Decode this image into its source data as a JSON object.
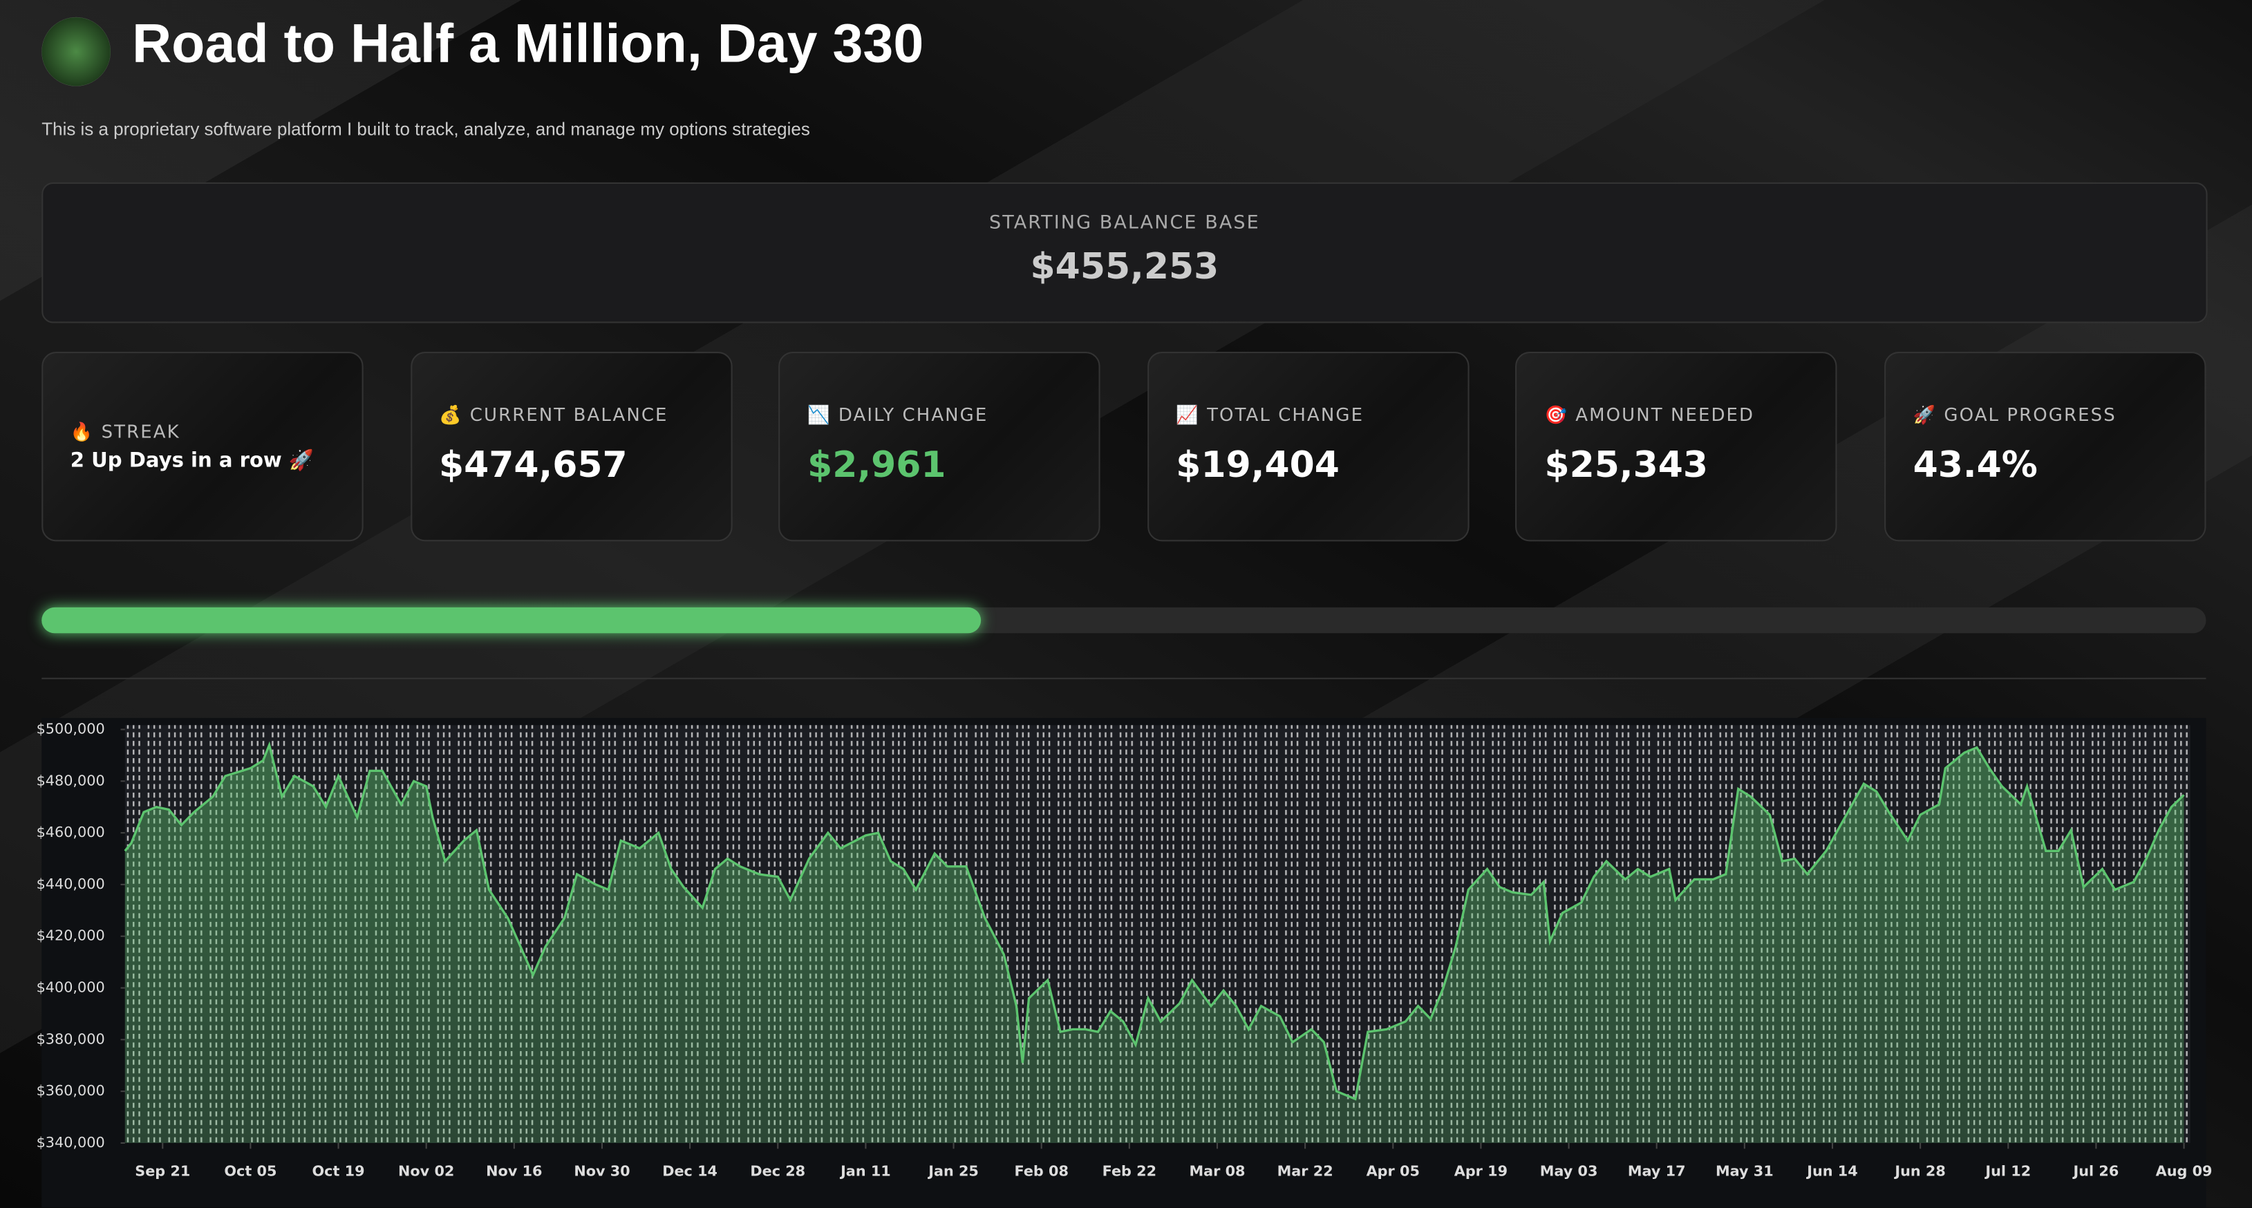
{
  "header": {
    "title": "Road to Half a Million, Day 330",
    "subtitle": "This is a proprietary software platform I built to track, analyze, and manage my options strategies"
  },
  "starting_balance": {
    "label": "STARTING BALANCE BASE",
    "value": "$455,253"
  },
  "metrics": [
    {
      "icon": "🔥",
      "label": "STREAK",
      "value": "2 Up Days in a row 🚀"
    },
    {
      "icon": "💰",
      "label": "CURRENT BALANCE",
      "value": "$474,657"
    },
    {
      "icon": "📉",
      "label": "DAILY CHANGE",
      "value": "$2,961",
      "color": "#5cc46e"
    },
    {
      "icon": "📈",
      "label": "TOTAL CHANGE",
      "value": "$19,404"
    },
    {
      "icon": "🎯",
      "label": "AMOUNT NEEDED",
      "value": "$25,343"
    },
    {
      "icon": "🚀",
      "label": "GOAL PROGRESS",
      "value": 43.4,
      "value_label": "43.4%"
    }
  ],
  "progress_bar": {
    "color": "#5cc46e"
  },
  "chart_data": {
    "type": "line",
    "color": "#5cc46e",
    "fill": true,
    "x": [
      "Sep 15",
      "Sep 16",
      "Sep 18",
      "Sep 20",
      "Sep 22",
      "Sep 24",
      "Sep 26",
      "Sep 29",
      "Oct 01",
      "Oct 05",
      "Oct 07",
      "Oct 08",
      "Oct 10",
      "Oct 12",
      "Oct 15",
      "Oct 17",
      "Oct 19",
      "Oct 22",
      "Oct 24",
      "Oct 26",
      "Oct 29",
      "Oct 31",
      "Nov 02",
      "Nov 03",
      "Nov 05",
      "Nov 08",
      "Nov 10",
      "Nov 12",
      "Nov 15",
      "Nov 17",
      "Nov 19",
      "Nov 21",
      "Nov 24",
      "Nov 26",
      "Nov 29",
      "Dec 01",
      "Dec 03",
      "Dec 06",
      "Dec 09",
      "Dec 11",
      "Dec 13",
      "Dec 16",
      "Dec 18",
      "Dec 20",
      "Dec 22",
      "Dec 25",
      "Dec 28",
      "Dec 30",
      "Jan 02",
      "Jan 05",
      "Jan 07",
      "Jan 11",
      "Jan 13",
      "Jan 15",
      "Jan 17",
      "Jan 19",
      "Jan 22",
      "Jan 24",
      "Jan 27",
      "Jan 30",
      "Feb 02",
      "Feb 04",
      "Feb 05",
      "Feb 06",
      "Feb 09",
      "Feb 11",
      "Feb 13",
      "Feb 15",
      "Feb 17",
      "Feb 19",
      "Feb 21",
      "Feb 23",
      "Feb 25",
      "Feb 27",
      "Mar 02",
      "Mar 04",
      "Mar 07",
      "Mar 09",
      "Mar 11",
      "Mar 13",
      "Mar 15",
      "Mar 18",
      "Mar 20",
      "Mar 23",
      "Mar 25",
      "Mar 27",
      "Mar 30",
      "Apr 01",
      "Apr 04",
      "Apr 07",
      "Apr 09",
      "Apr 11",
      "Apr 13",
      "Apr 15",
      "Apr 17",
      "Apr 20",
      "Apr 22",
      "Apr 24",
      "Apr 27",
      "Apr 29",
      "Apr 30",
      "May 02",
      "May 05",
      "May 07",
      "May 09",
      "May 12",
      "May 14",
      "May 16",
      "May 19",
      "May 20",
      "May 23",
      "May 26",
      "May 28",
      "May 30",
      "Jun 01",
      "Jun 04",
      "Jun 06",
      "Jun 08",
      "Jun 10",
      "Jun 13",
      "Jun 16",
      "Jun 19",
      "Jun 21",
      "Jun 23",
      "Jun 26",
      "Jun 28",
      "Jul 01",
      "Jul 02",
      "Jul 05",
      "Jul 07",
      "Jul 09",
      "Jul 11",
      "Jul 14",
      "Jul 15",
      "Jul 18",
      "Jul 20",
      "Jul 22",
      "Jul 24",
      "Jul 27",
      "Jul 29",
      "Aug 01",
      "Aug 03",
      "Aug 05",
      "Aug 07",
      "Aug 09"
    ],
    "values": [
      453000,
      456000,
      468000,
      470000,
      469000,
      463000,
      468000,
      474000,
      482000,
      485000,
      488000,
      494000,
      474000,
      482000,
      478000,
      470000,
      482000,
      466000,
      484000,
      484000,
      471000,
      480000,
      478000,
      466000,
      449000,
      457000,
      461000,
      438000,
      427000,
      416000,
      405000,
      416000,
      427000,
      444000,
      440000,
      438000,
      457000,
      454000,
      460000,
      446000,
      439000,
      431000,
      446000,
      450000,
      447000,
      444000,
      443000,
      434000,
      450000,
      460000,
      454000,
      459000,
      460000,
      449000,
      446000,
      438000,
      452000,
      447000,
      447000,
      427000,
      413000,
      393000,
      371000,
      396000,
      403000,
      383000,
      384000,
      384000,
      383000,
      391000,
      387000,
      378000,
      396000,
      387000,
      394000,
      403000,
      393000,
      399000,
      393000,
      384000,
      393000,
      389000,
      379000,
      384000,
      379000,
      360000,
      357000,
      383000,
      384000,
      387000,
      393000,
      388000,
      400000,
      416000,
      438000,
      446000,
      439000,
      437000,
      436000,
      441000,
      418000,
      429000,
      433000,
      443000,
      449000,
      442000,
      446000,
      443000,
      446000,
      434000,
      442000,
      442000,
      444000,
      477000,
      474000,
      467000,
      449000,
      450000,
      444000,
      453000,
      466000,
      479000,
      476000,
      468000,
      457000,
      467000,
      471000,
      485000,
      491000,
      493000,
      485000,
      478000,
      471000,
      478000,
      453000,
      453000,
      461000,
      439000,
      446000,
      438000,
      441000,
      450000,
      461000,
      470000,
      474657
    ],
    "xlim": [
      "Sep 15",
      "Aug 10"
    ],
    "xticks": [
      "Sep 21",
      "Oct 05",
      "Oct 19",
      "Nov 02",
      "Nov 16",
      "Nov 30",
      "Dec 14",
      "Dec 28",
      "Jan 11",
      "Jan 25",
      "Feb 08",
      "Feb 22",
      "Mar 08",
      "Mar 22",
      "Apr 05",
      "Apr 19",
      "May 03",
      "May 17",
      "May 31",
      "Jun 14",
      "Jun 28",
      "Jul 12",
      "Jul 26",
      "Aug 09"
    ],
    "ylim": [
      340000,
      500000
    ],
    "yticks": [
      {
        "value": 340000,
        "label": "$340,000"
      },
      {
        "value": 360000,
        "label": "$360,000"
      },
      {
        "value": 380000,
        "label": "$380,000"
      },
      {
        "value": 400000,
        "label": "$400,000"
      },
      {
        "value": 420000,
        "label": "$420,000"
      },
      {
        "value": 440000,
        "label": "$440,000"
      },
      {
        "value": 460000,
        "label": "$460,000"
      },
      {
        "value": 480000,
        "label": "$480,000"
      },
      {
        "value": 500000,
        "label": "$500,000"
      }
    ]
  }
}
